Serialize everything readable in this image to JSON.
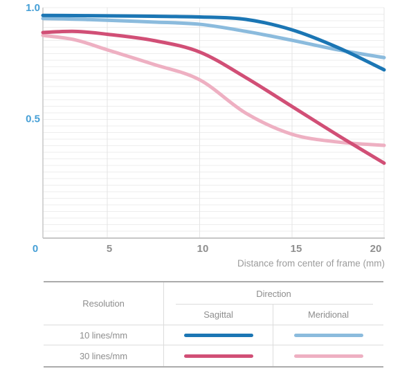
{
  "chart_data": {
    "type": "line",
    "title": "",
    "xlabel": "Distance from center of frame (mm)",
    "ylabel": "",
    "xlim": [
      0,
      20
    ],
    "ylim": [
      0,
      1.0
    ],
    "x_ticks": [
      0,
      5,
      10,
      15,
      20
    ],
    "x_tick_labels": [
      "0",
      "5",
      "10",
      "15",
      "20"
    ],
    "y_ticks": [
      1.0,
      0.5
    ],
    "y_tick_labels": [
      "1.0",
      "0.5"
    ],
    "grid": true,
    "legend_position": "bottom-table",
    "x": [
      0,
      2.5,
      5,
      7.5,
      10,
      12.5,
      15,
      17.5,
      20
    ],
    "series": [
      {
        "name": "10 lines/mm Sagittal",
        "color": "#1b76b4",
        "values": [
          0.965,
          0.964,
          0.963,
          0.961,
          0.958,
          0.947,
          0.9,
          0.82,
          0.72
        ]
      },
      {
        "name": "10 lines/mm Meridional",
        "color": "#8bbbdd",
        "values": [
          0.951,
          0.948,
          0.943,
          0.935,
          0.925,
          0.893,
          0.853,
          0.81,
          0.775
        ]
      },
      {
        "name": "30 lines/mm Sagittal",
        "color": "#d14f76",
        "values": [
          0.888,
          0.893,
          0.88,
          0.852,
          0.8,
          0.685,
          0.555,
          0.425,
          0.3
        ]
      },
      {
        "name": "30 lines/mm Meridional",
        "color": "#eeb0c2",
        "values": [
          0.875,
          0.855,
          0.81,
          0.745,
          0.675,
          0.525,
          0.43,
          0.395,
          0.38
        ]
      }
    ],
    "colors": {
      "tick_highlight": "#459fd6",
      "tick_normal": "#8f8f8f",
      "axis_title": "#9b9b9b",
      "grid_line": "#ededed",
      "grid_line_vertical": "#e4e4e4",
      "axis_line": "#c7c7c7"
    }
  },
  "legend_table": {
    "resolution_header": "Resolution",
    "direction_header": "Direction",
    "direction_columns": [
      "Sagittal",
      "Meridional"
    ],
    "rows": [
      {
        "resolution": "10 lines/mm",
        "sagittal_color": "#1b76b4",
        "meridional_color": "#8bbbdd"
      },
      {
        "resolution": "30 lines/mm",
        "sagittal_color": "#d14f76",
        "meridional_color": "#eeb0c2"
      }
    ]
  }
}
